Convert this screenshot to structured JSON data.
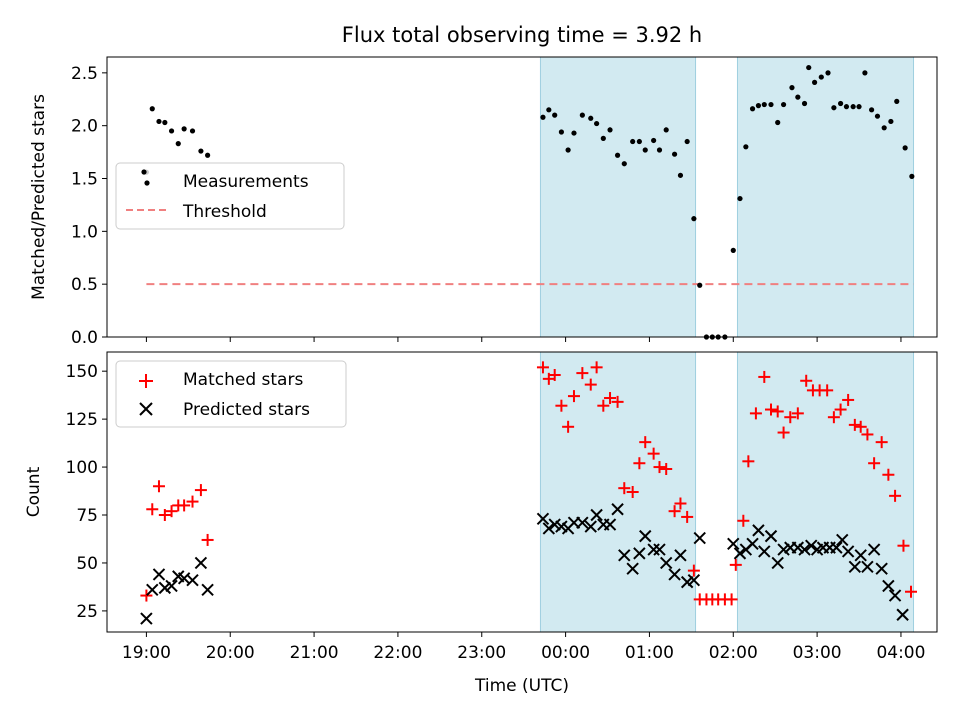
{
  "chart_data": [
    {
      "type": "scatter",
      "title": "Flux total observing time = 3.92 h",
      "xlabel": "",
      "ylabel": "Matched/Predicted stars",
      "xunit": "hours since 19:00 UTC on tick scale",
      "xlim": [
        -0.47,
        9.43
      ],
      "ylim": [
        0,
        2.65
      ],
      "yticks": [
        "0.0",
        "0.5",
        "1.0",
        "1.5",
        "2.0",
        "2.5"
      ],
      "shaded_spans": [
        [
          4.7,
          6.55
        ],
        [
          7.05,
          9.15
        ]
      ],
      "shade_color": "#add8e6",
      "legend": {
        "location": "center-left",
        "entries": [
          "Measurements",
          "Threshold"
        ]
      },
      "threshold": {
        "name": "Threshold",
        "y": 0.5,
        "x": [
          0.0,
          9.15
        ],
        "color": "#f08080"
      },
      "measurements": {
        "name": "Measurements",
        "color": "#000000",
        "points": [
          [
            0.0,
            1.56
          ],
          [
            0.07,
            2.16
          ],
          [
            0.15,
            2.04
          ],
          [
            0.22,
            2.03
          ],
          [
            0.3,
            1.95
          ],
          [
            0.38,
            1.83
          ],
          [
            0.45,
            1.97
          ],
          [
            0.55,
            1.95
          ],
          [
            0.65,
            1.76
          ],
          [
            0.73,
            1.72
          ],
          [
            4.73,
            2.08
          ],
          [
            4.8,
            2.15
          ],
          [
            4.87,
            2.1
          ],
          [
            4.95,
            1.94
          ],
          [
            5.03,
            1.77
          ],
          [
            5.1,
            1.93
          ],
          [
            5.2,
            2.1
          ],
          [
            5.3,
            2.07
          ],
          [
            5.37,
            2.02
          ],
          [
            5.45,
            1.88
          ],
          [
            5.53,
            1.96
          ],
          [
            5.62,
            1.72
          ],
          [
            5.7,
            1.64
          ],
          [
            5.8,
            1.85
          ],
          [
            5.88,
            1.85
          ],
          [
            5.95,
            1.77
          ],
          [
            6.05,
            1.86
          ],
          [
            6.12,
            1.77
          ],
          [
            6.2,
            1.96
          ],
          [
            6.3,
            1.73
          ],
          [
            6.37,
            1.53
          ],
          [
            6.45,
            1.85
          ],
          [
            6.53,
            1.12
          ],
          [
            6.6,
            0.49
          ],
          [
            6.68,
            0.0
          ],
          [
            6.75,
            0.0
          ],
          [
            6.82,
            0.0
          ],
          [
            6.9,
            0.0
          ],
          [
            7.0,
            0.82
          ],
          [
            7.08,
            1.31
          ],
          [
            7.15,
            1.8
          ],
          [
            7.23,
            2.16
          ],
          [
            7.3,
            2.19
          ],
          [
            7.37,
            2.2
          ],
          [
            7.45,
            2.2
          ],
          [
            7.53,
            2.03
          ],
          [
            7.6,
            2.2
          ],
          [
            7.7,
            2.36
          ],
          [
            7.77,
            2.27
          ],
          [
            7.85,
            2.21
          ],
          [
            7.9,
            2.55
          ],
          [
            7.97,
            2.41
          ],
          [
            8.05,
            2.46
          ],
          [
            8.13,
            2.5
          ],
          [
            8.2,
            2.17
          ],
          [
            8.28,
            2.21
          ],
          [
            8.35,
            2.18
          ],
          [
            8.43,
            2.18
          ],
          [
            8.5,
            2.18
          ],
          [
            8.57,
            2.5
          ],
          [
            8.65,
            2.15
          ],
          [
            8.72,
            2.09
          ],
          [
            8.8,
            1.98
          ],
          [
            8.88,
            2.04
          ],
          [
            8.95,
            2.23
          ],
          [
            9.05,
            1.79
          ],
          [
            9.13,
            1.52
          ]
        ]
      }
    },
    {
      "type": "scatter",
      "title": "",
      "xlabel": "Time (UTC)",
      "ylabel": "Count",
      "xlim": [
        -0.47,
        9.43
      ],
      "ylim": [
        14,
        160
      ],
      "yticks": [
        "25",
        "50",
        "75",
        "100",
        "125",
        "150"
      ],
      "xticks": [
        "19:00",
        "20:00",
        "21:00",
        "22:00",
        "23:00",
        "00:00",
        "01:00",
        "02:00",
        "03:00",
        "04:00"
      ],
      "shaded_spans": [
        [
          4.7,
          6.55
        ],
        [
          7.05,
          9.15
        ]
      ],
      "shade_color": "#add8e6",
      "legend": {
        "location": "top-left",
        "entries": [
          "Matched stars",
          "Predicted stars"
        ]
      },
      "series": [
        {
          "name": "Matched stars",
          "marker": "+",
          "color": "#ff0000",
          "points": [
            [
              0.0,
              33
            ],
            [
              0.07,
              78
            ],
            [
              0.15,
              90
            ],
            [
              0.22,
              75
            ],
            [
              0.3,
              77
            ],
            [
              0.38,
              80
            ],
            [
              0.45,
              80
            ],
            [
              0.55,
              82
            ],
            [
              0.65,
              88
            ],
            [
              0.73,
              62
            ],
            [
              4.73,
              152
            ],
            [
              4.8,
              146
            ],
            [
              4.87,
              148
            ],
            [
              4.95,
              132
            ],
            [
              5.03,
              121
            ],
            [
              5.1,
              137
            ],
            [
              5.2,
              149
            ],
            [
              5.3,
              143
            ],
            [
              5.37,
              152
            ],
            [
              5.45,
              132
            ],
            [
              5.53,
              136
            ],
            [
              5.62,
              134
            ],
            [
              5.7,
              89
            ],
            [
              5.8,
              87
            ],
            [
              5.88,
              102
            ],
            [
              5.95,
              113
            ],
            [
              6.05,
              107
            ],
            [
              6.12,
              100
            ],
            [
              6.2,
              99
            ],
            [
              6.3,
              77
            ],
            [
              6.37,
              81
            ],
            [
              6.45,
              74
            ],
            [
              6.53,
              46
            ],
            [
              6.6,
              31
            ],
            [
              6.68,
              31
            ],
            [
              6.75,
              31
            ],
            [
              6.82,
              31
            ],
            [
              6.9,
              31
            ],
            [
              6.98,
              31
            ],
            [
              7.03,
              49
            ],
            [
              7.12,
              72
            ],
            [
              7.18,
              103
            ],
            [
              7.27,
              128
            ],
            [
              7.37,
              147
            ],
            [
              7.45,
              130
            ],
            [
              7.53,
              129
            ],
            [
              7.6,
              118
            ],
            [
              7.68,
              126
            ],
            [
              7.77,
              128
            ],
            [
              7.87,
              145
            ],
            [
              7.95,
              140
            ],
            [
              8.03,
              140
            ],
            [
              8.12,
              140
            ],
            [
              8.2,
              126
            ],
            [
              8.28,
              130
            ],
            [
              8.37,
              135
            ],
            [
              8.45,
              122
            ],
            [
              8.52,
              121
            ],
            [
              8.6,
              117
            ],
            [
              8.68,
              102
            ],
            [
              8.77,
              113
            ],
            [
              8.85,
              96
            ],
            [
              8.93,
              85
            ],
            [
              9.03,
              59
            ],
            [
              9.12,
              35
            ]
          ]
        },
        {
          "name": "Predicted stars",
          "marker": "x",
          "color": "#000000",
          "points": [
            [
              0.0,
              21
            ],
            [
              0.07,
              36
            ],
            [
              0.15,
              44
            ],
            [
              0.22,
              37
            ],
            [
              0.3,
              38
            ],
            [
              0.38,
              43
            ],
            [
              0.45,
              42
            ],
            [
              0.55,
              41
            ],
            [
              0.65,
              50
            ],
            [
              0.73,
              36
            ],
            [
              4.73,
              73
            ],
            [
              4.8,
              68
            ],
            [
              4.87,
              70
            ],
            [
              4.95,
              69
            ],
            [
              5.03,
              68
            ],
            [
              5.1,
              71
            ],
            [
              5.2,
              71
            ],
            [
              5.3,
              69
            ],
            [
              5.37,
              75
            ],
            [
              5.45,
              70
            ],
            [
              5.53,
              70
            ],
            [
              5.62,
              78
            ],
            [
              5.7,
              54
            ],
            [
              5.8,
              47
            ],
            [
              5.88,
              55
            ],
            [
              5.95,
              64
            ],
            [
              6.05,
              57
            ],
            [
              6.12,
              57
            ],
            [
              6.2,
              50
            ],
            [
              6.3,
              44
            ],
            [
              6.37,
              54
            ],
            [
              6.45,
              40
            ],
            [
              6.53,
              41
            ],
            [
              6.6,
              63
            ],
            [
              7.0,
              60
            ],
            [
              7.08,
              55
            ],
            [
              7.15,
              57
            ],
            [
              7.23,
              60
            ],
            [
              7.3,
              67
            ],
            [
              7.37,
              56
            ],
            [
              7.45,
              64
            ],
            [
              7.53,
              50
            ],
            [
              7.6,
              57
            ],
            [
              7.68,
              58
            ],
            [
              7.77,
              58
            ],
            [
              7.85,
              57
            ],
            [
              7.93,
              59
            ],
            [
              8.0,
              57
            ],
            [
              8.07,
              58
            ],
            [
              8.15,
              58
            ],
            [
              8.23,
              58
            ],
            [
              8.3,
              62
            ],
            [
              8.37,
              56
            ],
            [
              8.45,
              48
            ],
            [
              8.52,
              54
            ],
            [
              8.6,
              48
            ],
            [
              8.68,
              57
            ],
            [
              8.77,
              47
            ],
            [
              8.85,
              38
            ],
            [
              8.93,
              33
            ],
            [
              9.02,
              23
            ]
          ]
        }
      ]
    }
  ]
}
